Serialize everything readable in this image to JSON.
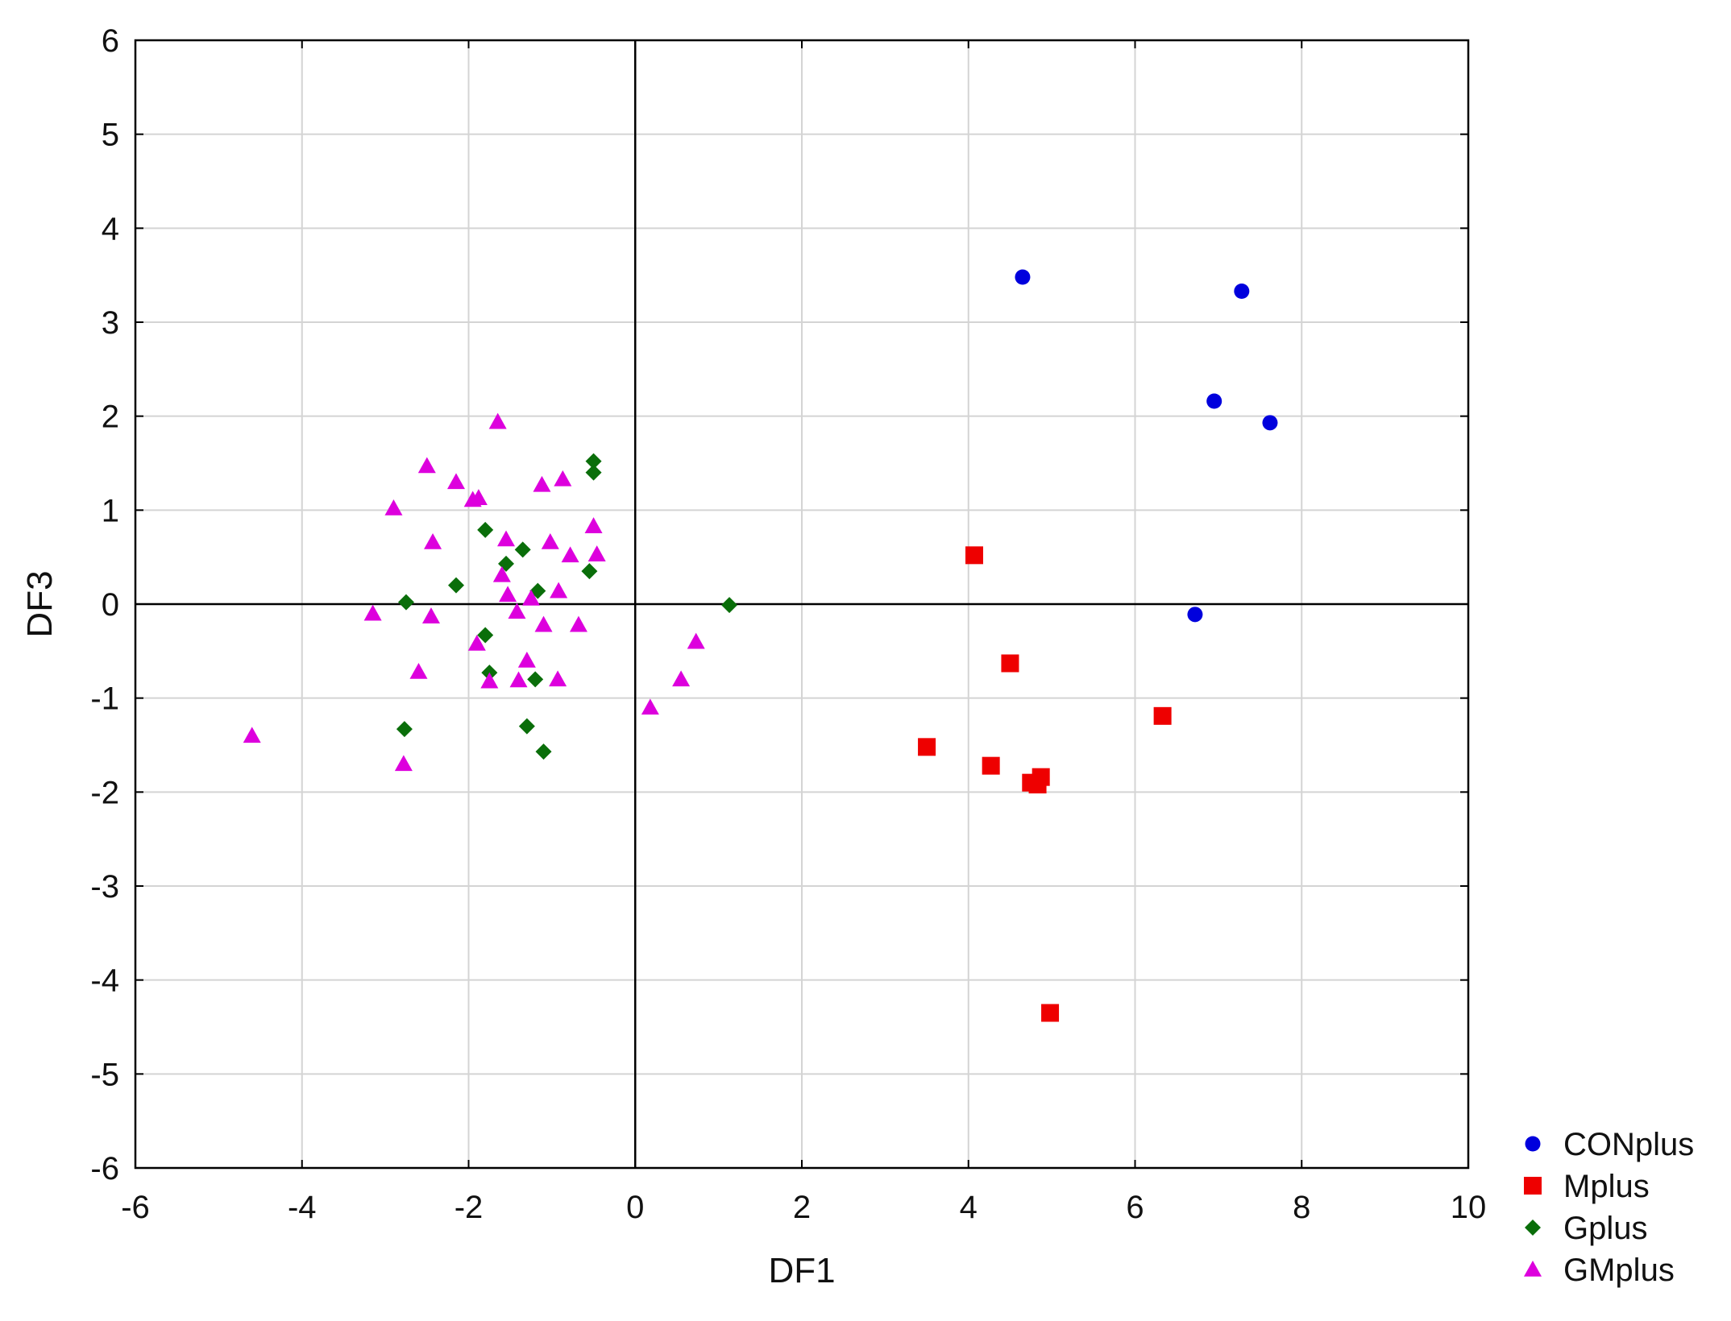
{
  "chart_data": {
    "type": "scatter",
    "xlabel": "DF1",
    "ylabel": "DF3",
    "xlim": [
      -6,
      10
    ],
    "ylim": [
      -6,
      6
    ],
    "xticks": [
      "-6",
      "-4",
      "-2",
      "0",
      "2",
      "4",
      "6",
      "8",
      "10"
    ],
    "yticks": [
      "6",
      "5",
      "4",
      "3",
      "2",
      "1",
      "0",
      "-1",
      "-2",
      "-3",
      "-4",
      "-5",
      "-6"
    ],
    "grid": true,
    "reference_lines": {
      "x": 0,
      "y": 0
    },
    "legend_position": "bottom-right",
    "series": [
      {
        "name": "CONplus",
        "marker": "circle",
        "color": "#0000dd",
        "points": [
          [
            4.65,
            3.48
          ],
          [
            7.28,
            3.33
          ],
          [
            6.95,
            2.16
          ],
          [
            7.62,
            1.93
          ],
          [
            6.72,
            -0.11
          ]
        ]
      },
      {
        "name": "Mplus",
        "marker": "square",
        "color": "#ee0000",
        "points": [
          [
            4.07,
            0.52
          ],
          [
            4.5,
            -0.63
          ],
          [
            6.33,
            -1.19
          ],
          [
            3.5,
            -1.52
          ],
          [
            4.27,
            -1.72
          ],
          [
            4.87,
            -1.84
          ],
          [
            4.75,
            -1.9
          ],
          [
            4.83,
            -1.92
          ],
          [
            4.98,
            -4.35
          ]
        ]
      },
      {
        "name": "Gplus",
        "marker": "diamond",
        "color": "#0a6e0a",
        "points": [
          [
            -0.5,
            1.52
          ],
          [
            -0.5,
            1.4
          ],
          [
            -1.8,
            0.79
          ],
          [
            -1.35,
            0.58
          ],
          [
            -1.55,
            0.43
          ],
          [
            -0.55,
            0.35
          ],
          [
            -2.15,
            0.2
          ],
          [
            -1.17,
            0.14
          ],
          [
            -2.75,
            0.02
          ],
          [
            1.13,
            -0.01
          ],
          [
            -1.8,
            -0.33
          ],
          [
            -1.75,
            -0.73
          ],
          [
            -1.2,
            -0.8
          ],
          [
            -2.77,
            -1.33
          ],
          [
            -1.3,
            -1.3
          ],
          [
            -1.1,
            -1.57
          ]
        ]
      },
      {
        "name": "GMplus",
        "marker": "triangle",
        "color": "#dd00dd",
        "points": [
          [
            -1.65,
            1.94
          ],
          [
            -2.5,
            1.47
          ],
          [
            -2.15,
            1.3
          ],
          [
            -1.12,
            1.27
          ],
          [
            -0.87,
            1.33
          ],
          [
            -1.95,
            1.11
          ],
          [
            -1.88,
            1.13
          ],
          [
            -2.9,
            1.02
          ],
          [
            -0.5,
            0.83
          ],
          [
            -2.43,
            0.66
          ],
          [
            -1.55,
            0.69
          ],
          [
            -1.02,
            0.66
          ],
          [
            -0.78,
            0.52
          ],
          [
            -0.46,
            0.53
          ],
          [
            -1.6,
            0.31
          ],
          [
            -0.92,
            0.14
          ],
          [
            -1.53,
            0.1
          ],
          [
            -1.25,
            0.06
          ],
          [
            -1.42,
            -0.08
          ],
          [
            -3.15,
            -0.1
          ],
          [
            -2.45,
            -0.13
          ],
          [
            -1.1,
            -0.22
          ],
          [
            -0.68,
            -0.22
          ],
          [
            -1.9,
            -0.42
          ],
          [
            0.73,
            -0.4
          ],
          [
            -2.6,
            -0.72
          ],
          [
            -1.3,
            -0.6
          ],
          [
            -1.75,
            -0.82
          ],
          [
            -1.4,
            -0.81
          ],
          [
            -0.93,
            -0.8
          ],
          [
            0.55,
            -0.8
          ],
          [
            0.18,
            -1.1
          ],
          [
            -4.6,
            -1.4
          ],
          [
            -2.78,
            -1.7
          ]
        ]
      }
    ]
  }
}
